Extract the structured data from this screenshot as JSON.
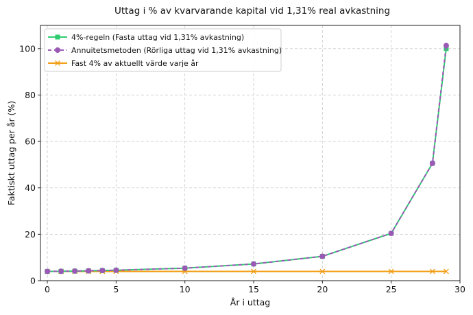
{
  "chart_data": {
    "type": "line",
    "title": "Uttag i % av kvarvarande kapital vid 1,31% real avkastning",
    "xlabel": "År i uttag",
    "ylabel": "Faktiskt uttag per år (%)",
    "xlim": [
      -0.5,
      30
    ],
    "ylim": [
      0,
      110
    ],
    "xticks": [
      0,
      5,
      10,
      15,
      20,
      25,
      30
    ],
    "yticks": [
      0,
      20,
      40,
      60,
      80,
      100
    ],
    "grid": true,
    "legend_position": "top-left",
    "x": [
      0,
      1,
      2,
      3,
      4,
      5,
      10,
      15,
      20,
      25,
      28,
      29
    ],
    "series": [
      {
        "name": "4%-regeln (Fasta uttag vid 1,31% avkastning)",
        "color": "#2ecc71",
        "marker": "square",
        "dash": "solid",
        "values": [
          4.0,
          4.05,
          4.15,
          4.25,
          4.4,
          4.5,
          5.4,
          7.2,
          10.5,
          20.4,
          50.6,
          100.0
        ]
      },
      {
        "name": "Annuitetsmetoden (Rörliga uttag vid 1,31% avkastning)",
        "color": "#9b59b6",
        "marker": "circle",
        "dash": "dashed",
        "values": [
          4.0,
          4.05,
          4.15,
          4.25,
          4.4,
          4.5,
          5.4,
          7.2,
          10.5,
          20.4,
          50.6,
          101.3
        ]
      },
      {
        "name": "Fast 4% av aktuellt värde varje år",
        "color": "#f39c12",
        "marker": "x",
        "dash": "solid",
        "values": [
          4,
          4,
          4,
          4,
          4,
          4,
          4,
          4,
          4,
          4,
          4,
          4
        ]
      }
    ]
  }
}
